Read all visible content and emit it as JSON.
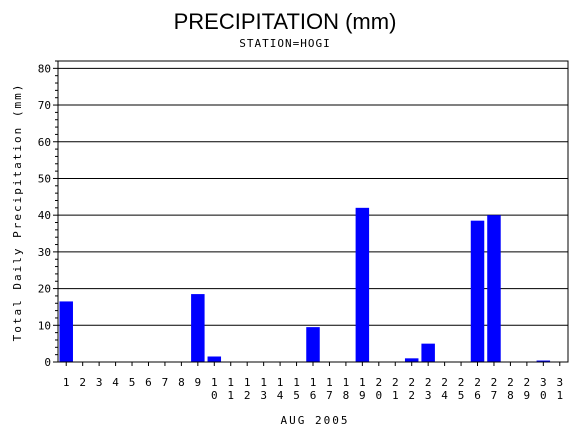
{
  "chart_data": {
    "type": "bar",
    "title": "PRECIPITATION (mm)",
    "subtitle": "STATION=HOGI",
    "xlabel": "AUG 2005",
    "ylabel": "Total Daily Precipitation (mm)",
    "ylim": [
      0,
      82
    ],
    "yticks": [
      0,
      10,
      20,
      30,
      40,
      50,
      60,
      70,
      80
    ],
    "grid": true,
    "bar_color": "#0000ff",
    "categories": [
      "1",
      "2",
      "3",
      "4",
      "5",
      "6",
      "7",
      "8",
      "9",
      "10",
      "11",
      "12",
      "13",
      "14",
      "15",
      "16",
      "17",
      "18",
      "19",
      "20",
      "21",
      "22",
      "23",
      "24",
      "25",
      "26",
      "27",
      "28",
      "29",
      "30",
      "31"
    ],
    "values": [
      16.5,
      0,
      0,
      0,
      0,
      0,
      0,
      0,
      18.5,
      1.5,
      0,
      0,
      0,
      0,
      0,
      9.5,
      0,
      0,
      42,
      0,
      0,
      1,
      5,
      0,
      0,
      38.5,
      40,
      0,
      0,
      0.4,
      0
    ]
  }
}
